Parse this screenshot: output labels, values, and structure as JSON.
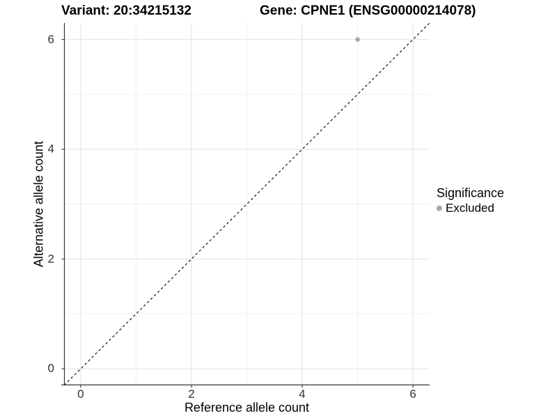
{
  "header": {
    "title_left": "Variant: 20:34215132",
    "title_right": "Gene: CPNE1 (ENSG00000214078)"
  },
  "chart_data": {
    "type": "scatter",
    "title_left": "Variant: 20:34215132",
    "title_right": "Gene: CPNE1 (ENSG00000214078)",
    "xlabel": "Reference allele count",
    "ylabel": "Alternative allele count",
    "xlim": [
      -0.3,
      6.3
    ],
    "ylim": [
      -0.3,
      6.3
    ],
    "x_ticks": [
      0,
      2,
      4,
      6
    ],
    "y_ticks": [
      0,
      2,
      4,
      6
    ],
    "grid_positions": [
      0,
      1,
      2,
      3,
      4,
      5,
      6
    ],
    "grid": true,
    "points": [
      {
        "x": 5,
        "y": 6,
        "series": "Excluded"
      }
    ],
    "identity_line": {
      "type": "dashed",
      "x1": -0.3,
      "y1": -0.3,
      "x2": 6.3,
      "y2": 6.3
    },
    "legend": {
      "title": "Significance",
      "position": "right",
      "items": [
        {
          "label": "Excluded",
          "color": "#a9a9a9"
        }
      ]
    },
    "colors": {
      "point": "#a9a9a9",
      "grid_major": "#e3e3e3",
      "grid_minor": "#efefef",
      "axis_line": "#333333",
      "tick_mark": "#333333",
      "dashed_line": "#111111",
      "background": "#ffffff"
    }
  }
}
